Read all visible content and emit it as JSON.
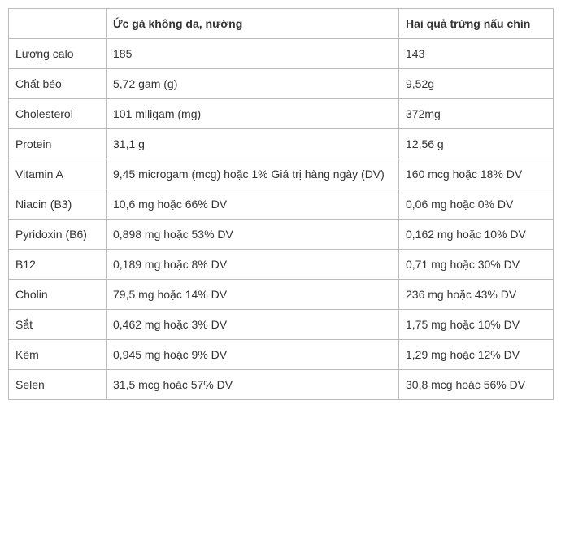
{
  "table": {
    "columns": [
      {
        "header": ""
      },
      {
        "header": "Ức gà không da, nướng"
      },
      {
        "header": "Hai quả trứng nấu chín"
      }
    ],
    "rows": [
      {
        "nutrient": "Lượng calo",
        "chicken": "185",
        "eggs": "143"
      },
      {
        "nutrient": "Chất béo",
        "chicken": "5,72 gam (g)",
        "eggs": "9,52g"
      },
      {
        "nutrient": "Cholesterol",
        "chicken": "101 miligam (mg)",
        "eggs": "372mg"
      },
      {
        "nutrient": "Protein",
        "chicken": "31,1 g",
        "eggs": "12,56 g"
      },
      {
        "nutrient": "Vitamin A",
        "chicken": "9,45 microgam (mcg) hoặc 1% Giá trị hàng ngày (DV)",
        "eggs": "160 mcg hoặc 18% DV"
      },
      {
        "nutrient": "Niacin (B3)",
        "chicken": "10,6 mg hoặc 66% DV",
        "eggs": "0,06 mg hoặc 0% DV"
      },
      {
        "nutrient": "Pyridoxin (B6)",
        "chicken": "0,898 mg hoặc 53% DV",
        "eggs": "0,162 mg hoặc 10% DV"
      },
      {
        "nutrient": "B12",
        "chicken": "0,189 mg hoặc 8% DV",
        "eggs": "0,71 mg hoặc 30% DV"
      },
      {
        "nutrient": "Cholin",
        "chicken": "79,5 mg hoặc 14% DV",
        "eggs": "236 mg hoặc 43% DV"
      },
      {
        "nutrient": "Sắt",
        "chicken": "0,462 mg hoặc 3% DV",
        "eggs": "1,75 mg hoặc 10% DV"
      },
      {
        "nutrient": "Kẽm",
        "chicken": "0,945 mg hoặc 9% DV",
        "eggs": "1,29 mg hoặc 12% DV"
      },
      {
        "nutrient": "Selen",
        "chicken": "31,5 mcg hoặc 57% DV",
        "eggs": "30,8 mcg hoặc 56% DV"
      }
    ]
  }
}
